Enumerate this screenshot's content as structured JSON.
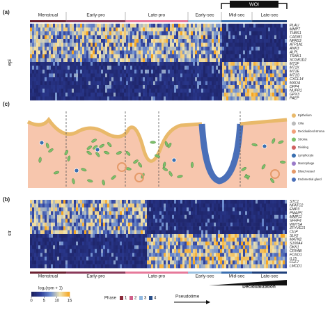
{
  "figure": {
    "panel_labels": {
      "a": "(a)",
      "c": "(c)",
      "b": "(b)"
    },
    "woi": "WOI",
    "top_phases": [
      {
        "label": "Menstrual",
        "color": "#6b2030"
      },
      {
        "label": "Early-pro",
        "color": "#8b3a5a"
      },
      {
        "label": "Late-pro",
        "color": "#e6799a"
      },
      {
        "label": "Early-sec",
        "color": "#9bc0e0"
      },
      {
        "label": "Mid-sec",
        "color": "#3a6fb0"
      },
      {
        "label": "Late-sec",
        "color": "#1e3f7a"
      }
    ],
    "epi_label": "epi",
    "epi_genes": [
      "PLAU",
      "MMP7",
      "THBS1",
      "CADM1",
      "NPAS3",
      "ATP1A1",
      "ANK3",
      "ALPL",
      "TRAK1",
      "SCGB1D2",
      "MT1F",
      "MT1X",
      "MT1E",
      "MT1G",
      "CXCL14",
      "MAOA",
      "DPP4",
      "NUPR1",
      "GPX3",
      "PAEP"
    ],
    "diagram_legend": [
      "Epithelium",
      "Cilia",
      "Decidualized stroma",
      "Stroma",
      "Dividing",
      "Lymphocyte",
      "Macrophage",
      "Blood vessel",
      "Endometrial gland"
    ],
    "str_label": "str",
    "str_genes": [
      "STC1",
      "NFATC2",
      "EMP3",
      "PMAIP1",
      "MMP11",
      "SFRP4",
      "WNT5A",
      "ZFYVE21",
      "CILP",
      "SLF2",
      "MATN2",
      "S100A4",
      "DKK1",
      "CRYAB",
      "FOXO1",
      "IL15",
      "FGF7",
      "LMCD1"
    ],
    "bottom_phases": [
      {
        "label": "Menstrual",
        "color": "#6b2030"
      },
      {
        "label": "Early-pro",
        "color": "#8b3a5a"
      },
      {
        "label": "Late-pro",
        "color": "#e6799a"
      },
      {
        "label": "Early-sec",
        "color": "#9bc0e0"
      },
      {
        "label": "Mid-sec",
        "color": "#3a6fb0"
      },
      {
        "label": "Late-sec",
        "color": "#1e3f7a"
      }
    ],
    "decidualization": "Decidualization",
    "colorbar": {
      "label": "log₂(rpm + 1)",
      "ticks": [
        0,
        5,
        10,
        15
      ]
    },
    "phase_legend": {
      "title": "Phase",
      "items": [
        {
          "label": "1",
          "color": "#8b2a3a"
        },
        {
          "label": "2",
          "color": "#d0608a"
        },
        {
          "label": "3",
          "color": "#90b8e0"
        },
        {
          "label": "4",
          "color": "#2a4f8a"
        }
      ]
    },
    "pseudotime": "Pseudotime"
  }
}
